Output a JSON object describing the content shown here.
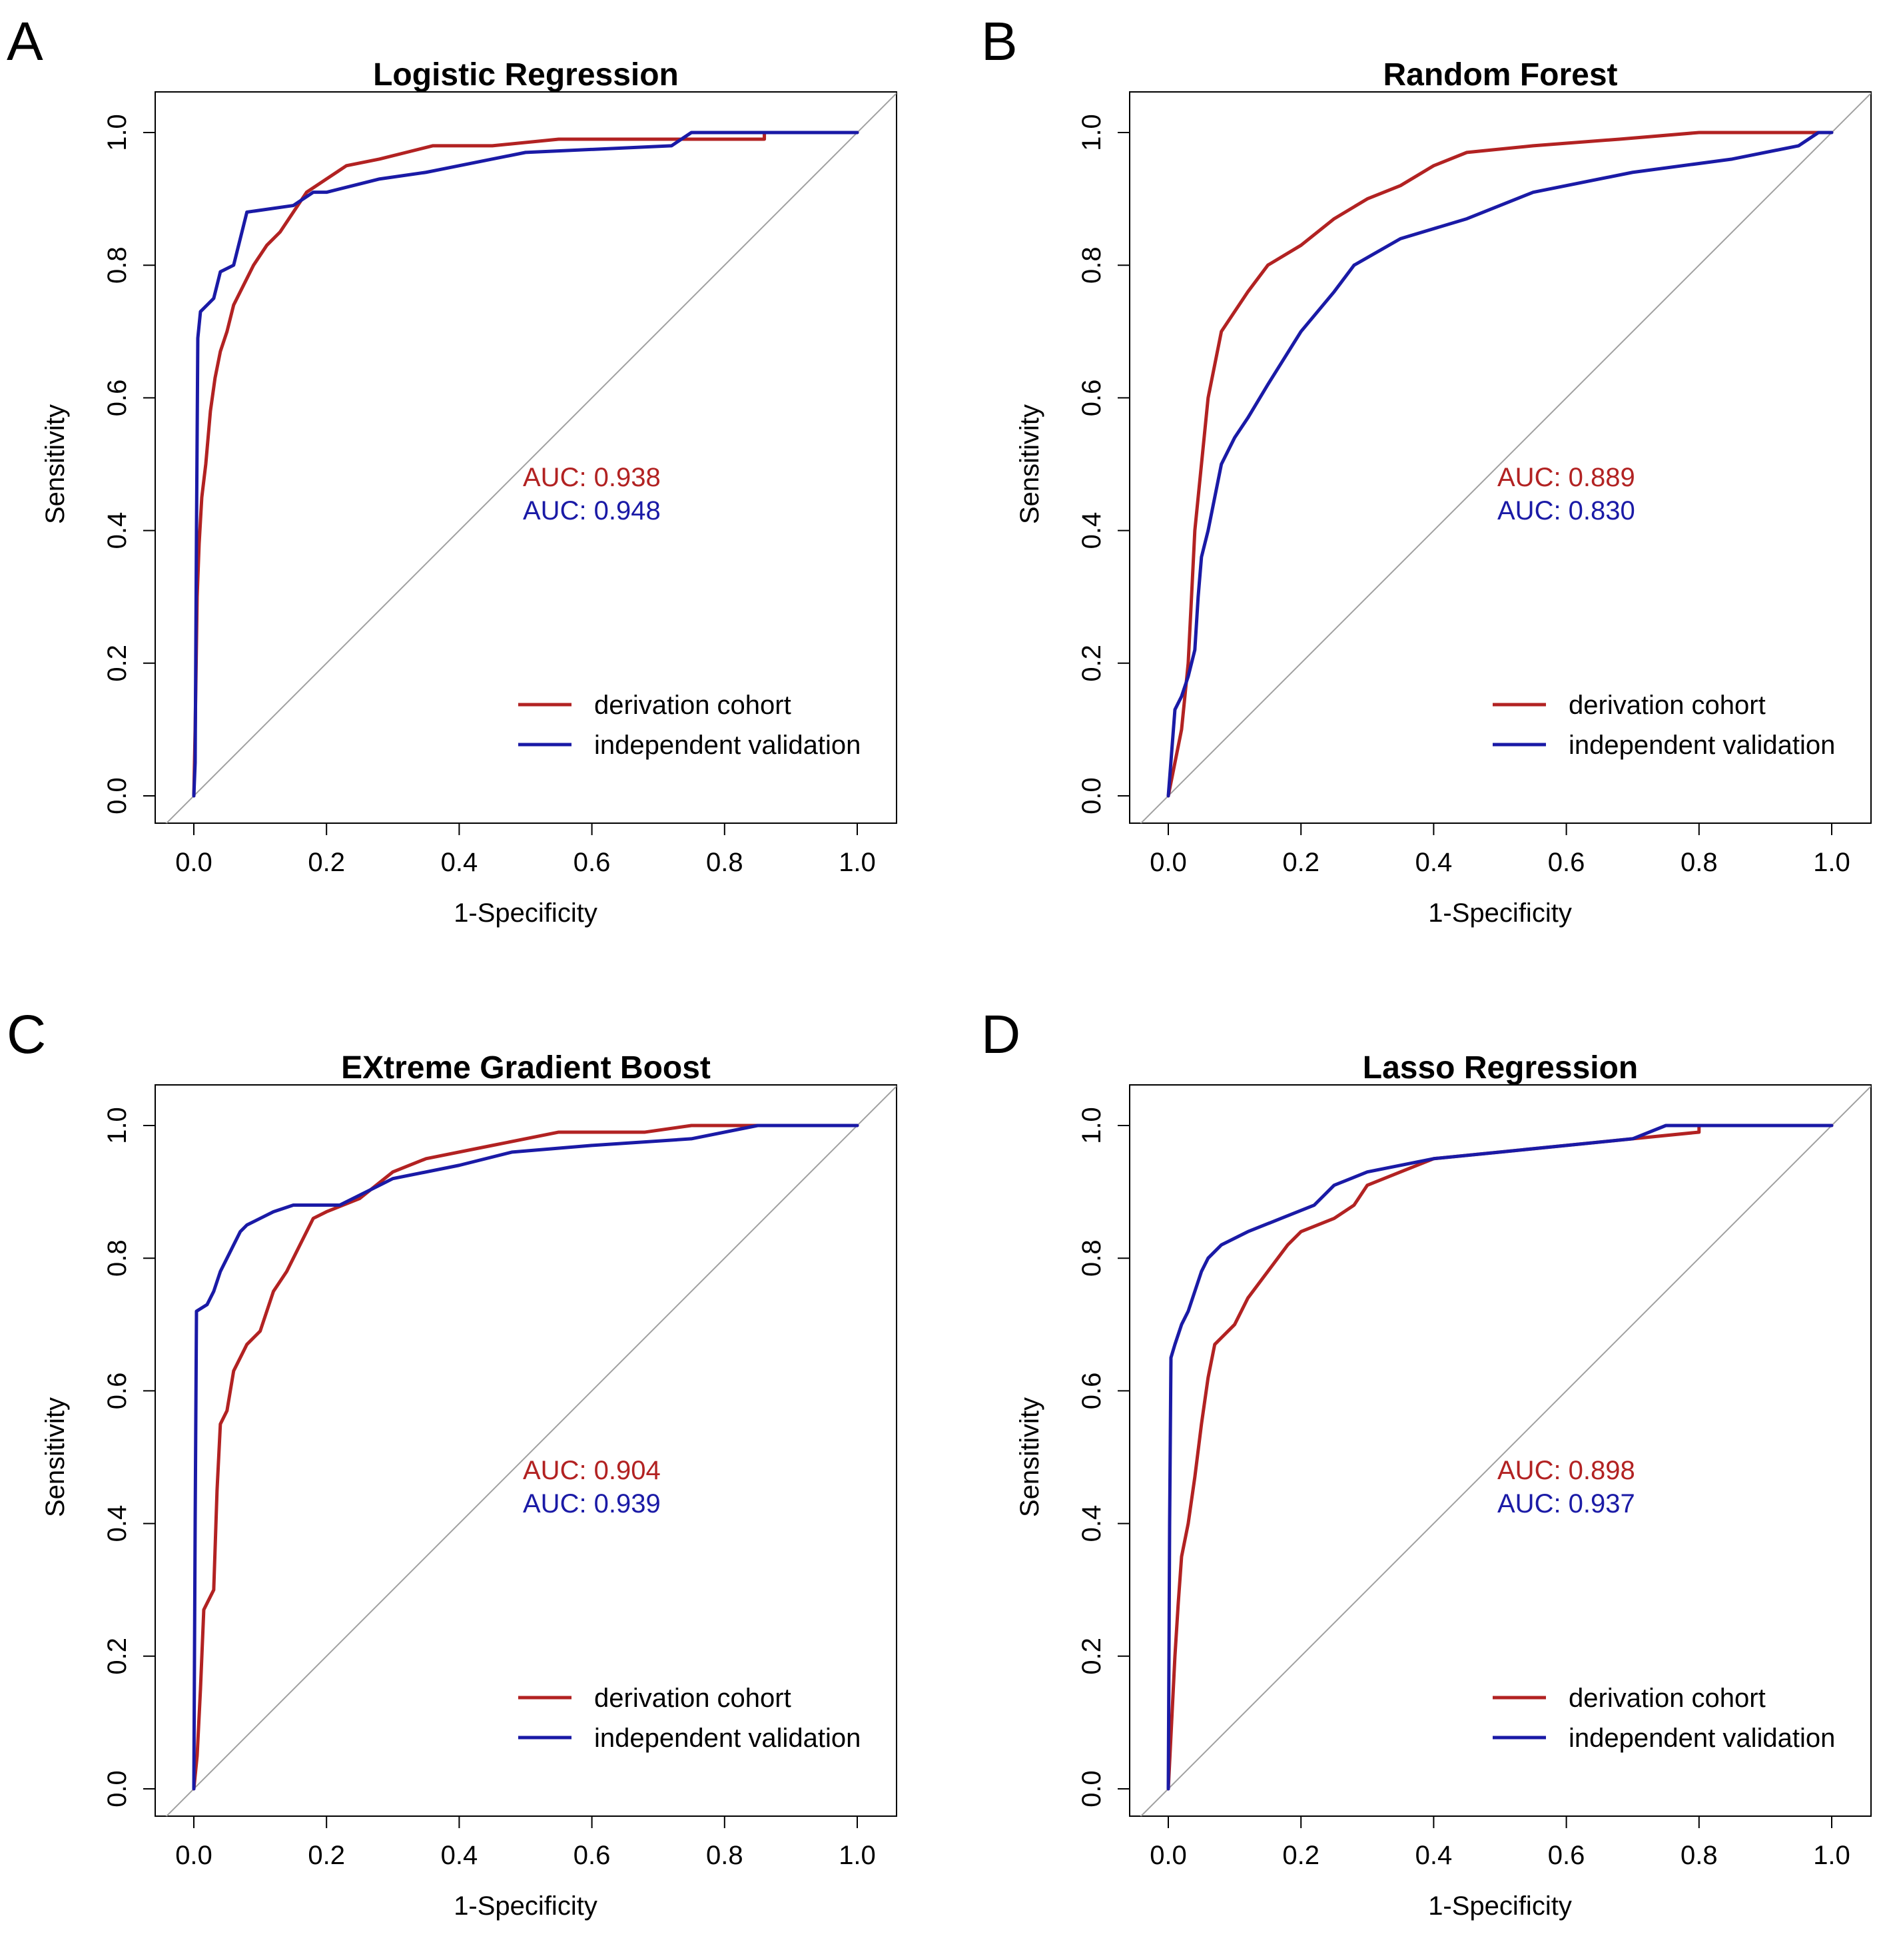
{
  "chart_data": [
    {
      "type": "line",
      "panel": "A",
      "title": "Logistic Regression",
      "xlabel": "1-Specificity",
      "ylabel": "Sensitivity",
      "xlim": [
        0,
        1
      ],
      "ylim": [
        0,
        1
      ],
      "xticks": [
        "0.0",
        "0.2",
        "0.4",
        "0.6",
        "0.8",
        "1.0"
      ],
      "yticks": [
        "0.0",
        "0.2",
        "0.4",
        "0.6",
        "0.8",
        "1.0"
      ],
      "reference_line": true,
      "auc": [
        {
          "text": "AUC: 0.938",
          "color": "#b22222"
        },
        {
          "text": "AUC: 0.948",
          "color": "#1a1aa6"
        }
      ],
      "legend": [
        {
          "label": "derivation cohort",
          "color": "#b22222"
        },
        {
          "label": "independent validation",
          "color": "#1a1aa6"
        }
      ],
      "series": [
        {
          "name": "derivation cohort",
          "color": "#b22222",
          "x": [
            0,
            0.002,
            0.005,
            0.008,
            0.012,
            0.018,
            0.025,
            0.032,
            0.04,
            0.05,
            0.06,
            0.075,
            0.09,
            0.11,
            0.13,
            0.15,
            0.17,
            0.2,
            0.23,
            0.28,
            0.32,
            0.36,
            0.45,
            0.55,
            0.65,
            0.8,
            0.86,
            0.86,
            1.0
          ],
          "y": [
            0,
            0.1,
            0.3,
            0.38,
            0.45,
            0.5,
            0.58,
            0.63,
            0.67,
            0.7,
            0.74,
            0.77,
            0.8,
            0.83,
            0.85,
            0.88,
            0.91,
            0.93,
            0.95,
            0.96,
            0.97,
            0.98,
            0.98,
            0.99,
            0.99,
            0.99,
            0.99,
            1.0,
            1.0
          ]
        },
        {
          "name": "independent validation",
          "color": "#1a1aa6",
          "x": [
            0,
            0.002,
            0.004,
            0.006,
            0.01,
            0.02,
            0.03,
            0.035,
            0.04,
            0.06,
            0.065,
            0.075,
            0.08,
            0.15,
            0.18,
            0.2,
            0.24,
            0.28,
            0.35,
            0.45,
            0.5,
            0.72,
            0.75,
            0.85,
            1.0
          ],
          "y": [
            0,
            0.05,
            0.4,
            0.69,
            0.73,
            0.74,
            0.75,
            0.77,
            0.79,
            0.8,
            0.82,
            0.86,
            0.88,
            0.89,
            0.91,
            0.91,
            0.92,
            0.93,
            0.94,
            0.96,
            0.97,
            0.98,
            1.0,
            1.0,
            1.0
          ]
        }
      ]
    },
    {
      "type": "line",
      "panel": "B",
      "title": "Random Forest",
      "xlabel": "1-Specificity",
      "ylabel": "Sensitivity",
      "xlim": [
        0,
        1
      ],
      "ylim": [
        0,
        1
      ],
      "xticks": [
        "0.0",
        "0.2",
        "0.4",
        "0.6",
        "0.8",
        "1.0"
      ],
      "yticks": [
        "0.0",
        "0.2",
        "0.4",
        "0.6",
        "0.8",
        "1.0"
      ],
      "reference_line": true,
      "auc": [
        {
          "text": "AUC: 0.889",
          "color": "#b22222"
        },
        {
          "text": "AUC: 0.830",
          "color": "#1a1aa6"
        }
      ],
      "legend": [
        {
          "label": "derivation cohort",
          "color": "#b22222"
        },
        {
          "label": "independent validation",
          "color": "#1a1aa6"
        }
      ],
      "series": [
        {
          "name": "derivation cohort",
          "color": "#b22222",
          "x": [
            0,
            0.01,
            0.02,
            0.03,
            0.035,
            0.04,
            0.05,
            0.06,
            0.07,
            0.08,
            0.1,
            0.12,
            0.15,
            0.2,
            0.25,
            0.3,
            0.35,
            0.4,
            0.45,
            0.55,
            0.68,
            0.8,
            1.0
          ],
          "y": [
            0,
            0.05,
            0.1,
            0.2,
            0.3,
            0.4,
            0.5,
            0.6,
            0.65,
            0.7,
            0.73,
            0.76,
            0.8,
            0.83,
            0.87,
            0.9,
            0.92,
            0.95,
            0.97,
            0.98,
            0.99,
            1.0,
            1.0
          ]
        },
        {
          "name": "independent validation",
          "color": "#1a1aa6",
          "x": [
            0,
            0.01,
            0.02,
            0.03,
            0.04,
            0.045,
            0.05,
            0.06,
            0.07,
            0.08,
            0.1,
            0.12,
            0.15,
            0.2,
            0.25,
            0.28,
            0.35,
            0.45,
            0.55,
            0.7,
            0.85,
            0.95,
            0.98,
            1.0
          ],
          "y": [
            0,
            0.13,
            0.15,
            0.18,
            0.22,
            0.3,
            0.36,
            0.4,
            0.45,
            0.5,
            0.54,
            0.57,
            0.62,
            0.7,
            0.76,
            0.8,
            0.84,
            0.87,
            0.91,
            0.94,
            0.96,
            0.98,
            1.0,
            1.0
          ]
        }
      ]
    },
    {
      "type": "line",
      "panel": "C",
      "title": "EXtreme Gradient Boost",
      "xlabel": "1-Specificity",
      "ylabel": "Sensitivity",
      "xlim": [
        0,
        1
      ],
      "ylim": [
        0,
        1
      ],
      "xticks": [
        "0.0",
        "0.2",
        "0.4",
        "0.6",
        "0.8",
        "1.0"
      ],
      "yticks": [
        "0.0",
        "0.2",
        "0.4",
        "0.6",
        "0.8",
        "1.0"
      ],
      "reference_line": true,
      "auc": [
        {
          "text": "AUC: 0.904",
          "color": "#b22222"
        },
        {
          "text": "AUC: 0.939",
          "color": "#1a1aa6"
        }
      ],
      "legend": [
        {
          "label": "derivation cohort",
          "color": "#b22222"
        },
        {
          "label": "independent validation",
          "color": "#1a1aa6"
        }
      ],
      "series": [
        {
          "name": "derivation cohort",
          "color": "#b22222",
          "x": [
            0,
            0.005,
            0.01,
            0.015,
            0.02,
            0.03,
            0.035,
            0.04,
            0.05,
            0.06,
            0.07,
            0.08,
            0.1,
            0.12,
            0.14,
            0.16,
            0.18,
            0.2,
            0.25,
            0.3,
            0.35,
            0.45,
            0.55,
            0.68,
            0.75,
            1.0
          ],
          "y": [
            0,
            0.05,
            0.15,
            0.27,
            0.28,
            0.3,
            0.45,
            0.55,
            0.57,
            0.63,
            0.65,
            0.67,
            0.69,
            0.75,
            0.78,
            0.82,
            0.86,
            0.87,
            0.89,
            0.93,
            0.95,
            0.97,
            0.99,
            0.99,
            1.0,
            1.0
          ]
        },
        {
          "name": "independent validation",
          "color": "#1a1aa6",
          "x": [
            0,
            0.002,
            0.004,
            0.02,
            0.03,
            0.04,
            0.05,
            0.06,
            0.07,
            0.08,
            0.1,
            0.12,
            0.15,
            0.22,
            0.26,
            0.3,
            0.4,
            0.48,
            0.6,
            0.75,
            0.85,
            1.0
          ],
          "y": [
            0,
            0.4,
            0.72,
            0.73,
            0.75,
            0.78,
            0.8,
            0.82,
            0.84,
            0.85,
            0.86,
            0.87,
            0.88,
            0.88,
            0.9,
            0.92,
            0.94,
            0.96,
            0.97,
            0.98,
            1.0,
            1.0
          ]
        }
      ]
    },
    {
      "type": "line",
      "panel": "D",
      "title": "Lasso Regression",
      "xlabel": "1-Specificity",
      "ylabel": "Sensitivity",
      "xlim": [
        0,
        1
      ],
      "ylim": [
        0,
        1
      ],
      "xticks": [
        "0.0",
        "0.2",
        "0.4",
        "0.6",
        "0.8",
        "1.0"
      ],
      "yticks": [
        "0.0",
        "0.2",
        "0.4",
        "0.6",
        "0.8",
        "1.0"
      ],
      "reference_line": true,
      "auc": [
        {
          "text": "AUC: 0.898",
          "color": "#b22222"
        },
        {
          "text": "AUC: 0.937",
          "color": "#1a1aa6"
        }
      ],
      "legend": [
        {
          "label": "derivation cohort",
          "color": "#b22222"
        },
        {
          "label": "independent validation",
          "color": "#1a1aa6"
        }
      ],
      "series": [
        {
          "name": "derivation cohort",
          "color": "#b22222",
          "x": [
            0,
            0.005,
            0.01,
            0.015,
            0.02,
            0.03,
            0.04,
            0.05,
            0.06,
            0.07,
            0.08,
            0.1,
            0.12,
            0.15,
            0.18,
            0.2,
            0.25,
            0.28,
            0.3,
            0.35,
            0.4,
            0.5,
            0.6,
            0.7,
            0.8,
            0.8,
            1.0
          ],
          "y": [
            0,
            0.1,
            0.2,
            0.28,
            0.35,
            0.4,
            0.47,
            0.55,
            0.62,
            0.67,
            0.68,
            0.7,
            0.74,
            0.78,
            0.82,
            0.84,
            0.86,
            0.88,
            0.91,
            0.93,
            0.95,
            0.96,
            0.97,
            0.98,
            0.99,
            1.0,
            1.0
          ]
        },
        {
          "name": "independent validation",
          "color": "#1a1aa6",
          "x": [
            0,
            0.002,
            0.004,
            0.01,
            0.02,
            0.03,
            0.04,
            0.05,
            0.06,
            0.08,
            0.12,
            0.17,
            0.22,
            0.25,
            0.3,
            0.4,
            0.5,
            0.6,
            0.7,
            0.75,
            1.0
          ],
          "y": [
            0,
            0.4,
            0.65,
            0.67,
            0.7,
            0.72,
            0.75,
            0.78,
            0.8,
            0.82,
            0.84,
            0.86,
            0.88,
            0.91,
            0.93,
            0.95,
            0.96,
            0.97,
            0.98,
            1.0,
            1.0
          ]
        }
      ]
    }
  ]
}
